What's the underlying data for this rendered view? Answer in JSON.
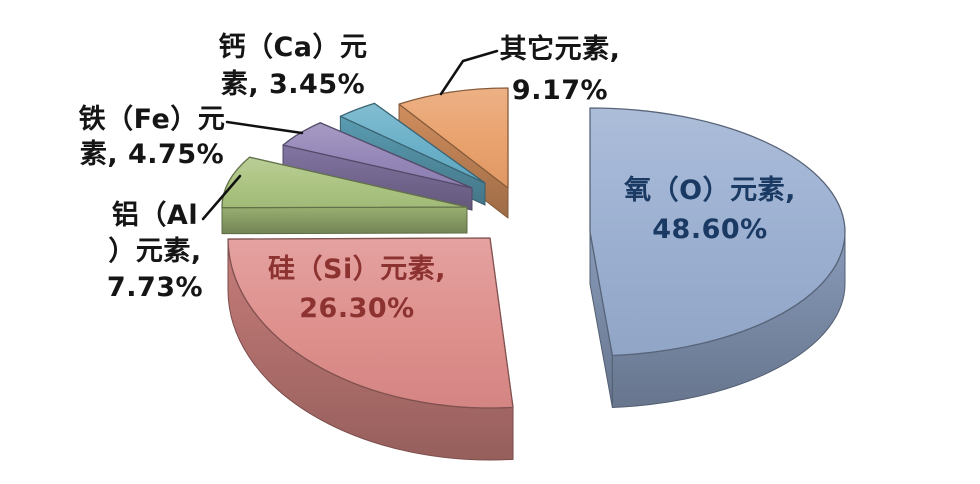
{
  "chart_data": {
    "type": "pie",
    "style": "3d-exploded",
    "title": "",
    "unit": "%",
    "total": 100.0,
    "start_angle_deg": 0,
    "direction": "clockwise",
    "legend": "none",
    "background": "#FFFFFF",
    "slices": [
      {
        "id": "oxygen",
        "label": "氧（O）元素",
        "value": 48.6,
        "color": "#97ACCF",
        "label_lines": [
          "氧（O）元素,",
          "48.60%"
        ],
        "label_color": "#1A3A63",
        "label_position": "inside"
      },
      {
        "id": "silicon",
        "label": "硅（Si）元素",
        "value": 26.3,
        "color": "#DD8B88",
        "label_lines": [
          "硅（Si）元素,",
          "26.30%"
        ],
        "label_color": "#8C3230",
        "label_position": "inside"
      },
      {
        "id": "aluminum",
        "label": "铝（Al）元素",
        "value": 7.73,
        "color": "#A9C27D",
        "label_lines": [
          "铝（Al",
          "）元素,",
          "7.73%"
        ],
        "label_color": "#151515",
        "label_position": "outside",
        "leader_line": true
      },
      {
        "id": "iron",
        "label": "铁（Fe）元素",
        "value": 4.75,
        "color": "#9182B5",
        "label_lines": [
          "铁（Fe）元",
          "素, 4.75%"
        ],
        "label_color": "#151515",
        "label_position": "outside",
        "leader_line": true
      },
      {
        "id": "calcium",
        "label": "钙（Ca）元素",
        "value": 3.45,
        "color": "#64ADC6",
        "label_lines": [
          "钙（Ca）元",
          "素, 3.45%"
        ],
        "label_color": "#151515",
        "label_position": "outside",
        "leader_line": false
      },
      {
        "id": "other",
        "label": "其它元素",
        "value": 9.17,
        "color": "#E89E67",
        "label_lines": [
          "其它元素,",
          "9.17%"
        ],
        "label_color": "#151515",
        "label_position": "outside",
        "leader_line": true
      }
    ]
  }
}
